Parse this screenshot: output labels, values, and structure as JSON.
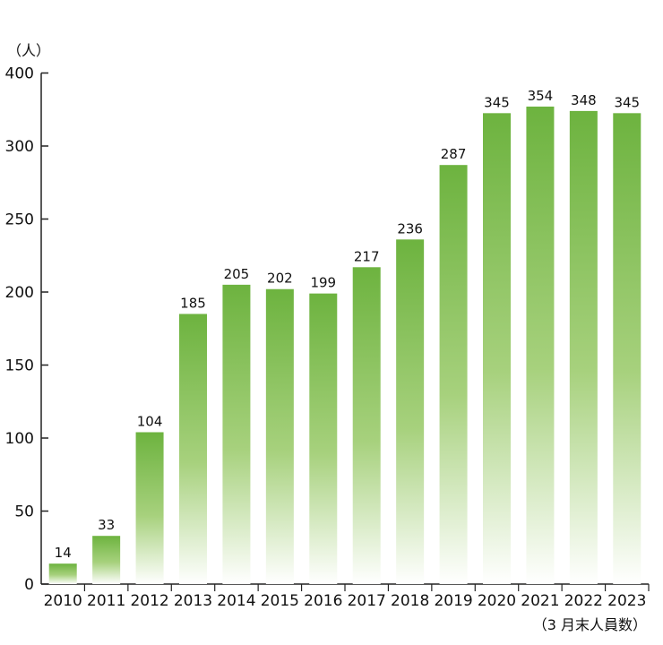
{
  "chart_data": {
    "type": "bar",
    "categories": [
      "2010",
      "2011",
      "2012",
      "2013",
      "2014",
      "2015",
      "2016",
      "2017",
      "2018",
      "2019",
      "2020",
      "2021",
      "2022",
      "2023"
    ],
    "values": [
      14,
      33,
      104,
      185,
      205,
      202,
      199,
      217,
      236,
      287,
      345,
      354,
      348,
      345
    ],
    "y_ticks": [
      "0",
      "50",
      "100",
      "150",
      "200",
      "250",
      "300",
      "400"
    ],
    "ylabel": "（人）",
    "note": "（3 月末人員数）",
    "grid": false,
    "bar_color_top": "#6db33f",
    "bar_color_bottom": "#ffffff"
  }
}
